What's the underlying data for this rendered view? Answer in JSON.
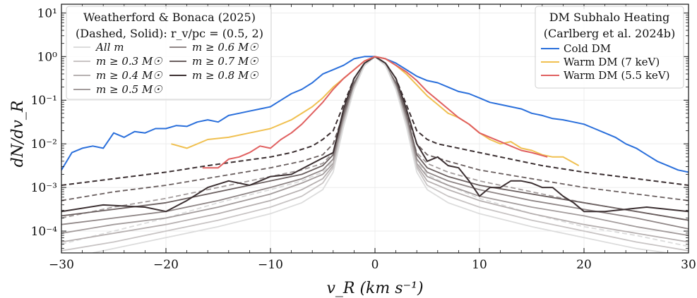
{
  "chart_data": {
    "type": "line",
    "xlabel": "v_R (km s⁻¹)",
    "ylabel": "dN/dv_R",
    "xlim": [
      -30,
      30
    ],
    "ylim_log10": [
      -4.5,
      1.2
    ],
    "grid": true,
    "x_ticks": [
      -30,
      -20,
      -10,
      0,
      10,
      20,
      30
    ],
    "x_tick_labels": [
      "−30",
      "−20",
      "−10",
      "0",
      "10",
      "20",
      "30"
    ],
    "y_ticks_log10": [
      -4,
      -3,
      -2,
      -1,
      0,
      1
    ],
    "y_tick_labels": [
      "10⁻⁴",
      "10⁻³",
      "10⁻²",
      "10⁻¹",
      "10⁰",
      "10¹"
    ],
    "legend_left": {
      "title_line1": "Weatherford & Bonaca (2025)",
      "title_line2": "(Dashed, Solid): r_v/pc = (0.5, 2)",
      "entries": [
        {
          "label": "All m",
          "color": "#dcdcdc"
        },
        {
          "label": "m ≥ 0.3 M☉",
          "color": "#c8c4c4"
        },
        {
          "label": "m ≥ 0.4 M☉",
          "color": "#b6b0b0"
        },
        {
          "label": "m ≥ 0.5 M☉",
          "color": "#a39c9c"
        },
        {
          "label": "m ≥ 0.6 M☉",
          "color": "#8f8686"
        },
        {
          "label": "m ≥ 0.7 M☉",
          "color": "#6a5f5f"
        },
        {
          "label": "m ≥ 0.8 M☉",
          "color": "#3c3032"
        }
      ]
    },
    "legend_right": {
      "title_line1": "DM Subhalo Heating",
      "title_line2": "(Carlberg et al. 2024b)",
      "entries": [
        {
          "label": "Cold DM",
          "color": "#2a6fdb"
        },
        {
          "label": "Warm DM (7 keV)",
          "color": "#f0c050"
        },
        {
          "label": "Warm DM (5.5 keV)",
          "color": "#e06060"
        }
      ]
    },
    "series": [
      {
        "name": "Cold DM",
        "color": "#2a6fdb",
        "style": "solid",
        "x": [
          -30,
          -29,
          -28,
          -27,
          -26,
          -25,
          -24,
          -23,
          -22,
          -21,
          -20,
          -19,
          -18,
          -17,
          -16,
          -15,
          -14,
          -13,
          -12,
          -11,
          -10,
          -9,
          -8,
          -7,
          -6,
          -5,
          -4,
          -3,
          -2,
          -1,
          0,
          1,
          2,
          3,
          4,
          5,
          6,
          7,
          8,
          9,
          10,
          11,
          12,
          13,
          14,
          15,
          16,
          17,
          18,
          19,
          20,
          21,
          22,
          23,
          24,
          25,
          26,
          27,
          28,
          29,
          30
        ],
        "log10y": [
          -2.6,
          -2.2,
          -2.1,
          -2.05,
          -2.1,
          -1.75,
          -1.85,
          -1.72,
          -1.75,
          -1.65,
          -1.65,
          -1.58,
          -1.6,
          -1.5,
          -1.45,
          -1.5,
          -1.35,
          -1.3,
          -1.25,
          -1.2,
          -1.15,
          -1.0,
          -0.85,
          -0.75,
          -0.6,
          -0.4,
          -0.3,
          -0.2,
          -0.05,
          0,
          0,
          -0.05,
          -0.15,
          -0.3,
          -0.45,
          -0.55,
          -0.6,
          -0.7,
          -0.8,
          -0.85,
          -0.95,
          -1.05,
          -1.1,
          -1.15,
          -1.2,
          -1.3,
          -1.35,
          -1.42,
          -1.45,
          -1.5,
          -1.55,
          -1.65,
          -1.75,
          -1.85,
          -2.0,
          -2.1,
          -2.25,
          -2.4,
          -2.5,
          -2.6,
          -2.65
        ]
      },
      {
        "name": "Warm DM (7 keV)",
        "color": "#f0c050",
        "style": "solid",
        "x": [
          -19.5,
          -18,
          -16,
          -14,
          -12,
          -10,
          -8,
          -6,
          -5,
          -4,
          -3,
          -2,
          -1,
          0,
          1,
          2,
          3,
          4,
          5,
          6,
          7,
          8,
          9,
          10,
          11,
          12,
          13,
          14,
          15,
          16,
          17,
          18,
          19.5
        ],
        "log10y": [
          -2.0,
          -2.1,
          -1.9,
          -1.85,
          -1.75,
          -1.65,
          -1.45,
          -1.15,
          -0.95,
          -0.7,
          -0.5,
          -0.3,
          -0.1,
          0,
          -0.05,
          -0.2,
          -0.4,
          -0.65,
          -0.9,
          -1.1,
          -1.3,
          -1.4,
          -1.55,
          -1.75,
          -1.9,
          -2.0,
          -1.95,
          -2.1,
          -2.15,
          -2.25,
          -2.3,
          -2.3,
          -2.5
        ]
      },
      {
        "name": "Warm DM (5.5 keV)",
        "color": "#e06060",
        "style": "solid",
        "x": [
          -16.5,
          -15,
          -14,
          -13,
          -12,
          -11,
          -10,
          -9,
          -8,
          -7,
          -6,
          -5,
          -4,
          -3,
          -2,
          -1,
          0,
          1,
          2,
          3,
          4,
          5,
          6,
          7,
          8,
          9,
          10,
          11,
          12,
          13,
          14,
          15,
          16.5
        ],
        "log10y": [
          -2.55,
          -2.55,
          -2.35,
          -2.3,
          -2.2,
          -2.05,
          -2.1,
          -1.9,
          -1.75,
          -1.55,
          -1.3,
          -1.05,
          -0.75,
          -0.5,
          -0.3,
          -0.1,
          0,
          -0.05,
          -0.2,
          -0.35,
          -0.55,
          -0.8,
          -1.0,
          -1.2,
          -1.4,
          -1.55,
          -1.75,
          -1.85,
          -1.95,
          -2.05,
          -2.15,
          -2.2,
          -2.3
        ]
      },
      {
        "name": "m ≥ 0.8 M☉ (solid)",
        "color": "#3c3032",
        "style": "solid",
        "x": [
          -30,
          -26,
          -22,
          -20,
          -18,
          -16,
          -14,
          -12,
          -10,
          -8,
          -6,
          -4,
          -3,
          -2,
          -1,
          0,
          1,
          2,
          3,
          4,
          5,
          6,
          7,
          8,
          9,
          10,
          11,
          12,
          13,
          14,
          15,
          16,
          17,
          18,
          19,
          20,
          22,
          24,
          26,
          28,
          30
        ],
        "log10y": [
          -3.55,
          -3.4,
          -3.45,
          -3.55,
          -3.3,
          -3.0,
          -2.85,
          -2.95,
          -2.75,
          -2.7,
          -2.45,
          -2.2,
          -1.2,
          -0.5,
          -0.15,
          0,
          -0.15,
          -0.5,
          -1.2,
          -2.0,
          -2.4,
          -2.3,
          -2.5,
          -2.55,
          -2.85,
          -3.2,
          -3.0,
          -3.0,
          -2.85,
          -2.85,
          -2.9,
          -3.0,
          -3.0,
          -3.2,
          -3.35,
          -3.55,
          -3.55,
          -3.5,
          -3.45,
          -3.5,
          -3.55
        ]
      },
      {
        "name": "m ≥ 0.8 M☉ (dashed)",
        "color": "#3c3032",
        "style": "dashed",
        "x": [
          -30,
          -25,
          -20,
          -16,
          -13,
          -10,
          -8,
          -6,
          -5,
          -4,
          -3,
          -2,
          -1,
          0,
          1,
          2,
          3,
          4,
          5,
          6,
          8,
          10,
          13,
          16,
          20,
          25,
          30
        ],
        "log10y": [
          -2.95,
          -2.8,
          -2.65,
          -2.5,
          -2.4,
          -2.3,
          -2.2,
          -2.05,
          -1.9,
          -1.7,
          -1.1,
          -0.5,
          -0.15,
          0,
          -0.15,
          -0.5,
          -1.1,
          -1.7,
          -1.9,
          -2.0,
          -2.1,
          -2.2,
          -2.35,
          -2.5,
          -2.65,
          -2.8,
          -2.95
        ]
      },
      {
        "name": "m ≥ 0.6 M☉ (dashed)",
        "color": "#6a5f5f",
        "style": "dashed",
        "x": [
          -30,
          -25,
          -20,
          -15,
          -10,
          -7,
          -5,
          -4,
          -3,
          -2,
          -1,
          0,
          1,
          2,
          3,
          4,
          5,
          7,
          10,
          15,
          20,
          25,
          30
        ],
        "log10y": [
          -3.3,
          -3.1,
          -2.95,
          -2.75,
          -2.55,
          -2.4,
          -2.25,
          -2.0,
          -1.3,
          -0.6,
          -0.2,
          0,
          -0.2,
          -0.6,
          -1.3,
          -2.0,
          -2.25,
          -2.4,
          -2.6,
          -2.8,
          -3.0,
          -3.15,
          -3.3
        ]
      },
      {
        "name": "m ≥ 0.4 M☉ (dashed)",
        "color": "#a39c9c",
        "style": "dashed",
        "x": [
          -30,
          -25,
          -20,
          -15,
          -10,
          -7,
          -5,
          -4,
          -3,
          -2,
          -1,
          0,
          1,
          2,
          3,
          4,
          5,
          7,
          10,
          15,
          20,
          25,
          30
        ],
        "log10y": [
          -3.7,
          -3.45,
          -3.25,
          -3.0,
          -2.75,
          -2.6,
          -2.45,
          -2.2,
          -1.4,
          -0.65,
          -0.2,
          0,
          -0.2,
          -0.65,
          -1.4,
          -2.2,
          -2.45,
          -2.65,
          -2.85,
          -3.1,
          -3.35,
          -3.55,
          -3.75
        ]
      },
      {
        "name": "All m (dashed)",
        "color": "#dcdcdc",
        "style": "dashed",
        "x": [
          -30,
          -25,
          -20,
          -15,
          -10,
          -7,
          -5,
          -4,
          -3,
          -2,
          -1,
          0,
          1,
          2,
          3,
          4,
          5,
          7,
          10,
          15,
          20,
          25,
          30
        ],
        "log10y": [
          -4.3,
          -4.0,
          -3.7,
          -3.35,
          -3.05,
          -2.85,
          -2.65,
          -2.4,
          -1.5,
          -0.7,
          -0.2,
          0,
          -0.2,
          -0.7,
          -1.5,
          -2.4,
          -2.7,
          -2.95,
          -3.25,
          -3.6,
          -3.9,
          -4.1,
          -4.35
        ]
      },
      {
        "name": "m ≥ 0.7 M☉ (solid)",
        "color": "#6a5f5f",
        "style": "solid",
        "x": [
          -30,
          -25,
          -20,
          -15,
          -10,
          -7,
          -5,
          -4,
          -3,
          -2,
          -1,
          0,
          1,
          2,
          3,
          4,
          5,
          7,
          10,
          15,
          20,
          25,
          30
        ],
        "log10y": [
          -3.65,
          -3.5,
          -3.35,
          -3.1,
          -2.85,
          -2.7,
          -2.5,
          -2.25,
          -1.3,
          -0.6,
          -0.2,
          0,
          -0.2,
          -0.6,
          -1.3,
          -2.25,
          -2.55,
          -2.75,
          -2.95,
          -3.15,
          -3.35,
          -3.55,
          -3.75
        ]
      },
      {
        "name": "m ≥ 0.6 M☉ (solid)",
        "color": "#8f8686",
        "style": "solid",
        "x": [
          -30,
          -25,
          -20,
          -15,
          -10,
          -7,
          -5,
          -4,
          -3,
          -2,
          -1,
          0,
          1,
          2,
          3,
          4,
          5,
          7,
          10,
          15,
          20,
          25,
          30
        ],
        "log10y": [
          -3.85,
          -3.7,
          -3.55,
          -3.3,
          -3.0,
          -2.8,
          -2.6,
          -2.35,
          -1.4,
          -0.65,
          -0.2,
          0,
          -0.2,
          -0.65,
          -1.4,
          -2.35,
          -2.65,
          -2.85,
          -3.05,
          -3.3,
          -3.5,
          -3.7,
          -3.95
        ]
      },
      {
        "name": "m ≥ 0.5 M☉ (solid)",
        "color": "#a39c9c",
        "style": "solid",
        "x": [
          -30,
          -25,
          -20,
          -15,
          -10,
          -7,
          -5,
          -4,
          -3,
          -2,
          -1,
          0,
          1,
          2,
          3,
          4,
          5,
          7,
          10,
          15,
          20,
          25,
          30
        ],
        "log10y": [
          -4.05,
          -3.85,
          -3.7,
          -3.45,
          -3.15,
          -2.9,
          -2.7,
          -2.45,
          -1.45,
          -0.7,
          -0.2,
          0,
          -0.2,
          -0.7,
          -1.45,
          -2.45,
          -2.75,
          -2.95,
          -3.2,
          -3.45,
          -3.65,
          -3.9,
          -4.1
        ]
      },
      {
        "name": "m ≥ 0.4 M☉ (solid)",
        "color": "#b6b0b0",
        "style": "solid",
        "x": [
          -30,
          -25,
          -20,
          -15,
          -10,
          -7,
          -5,
          -4,
          -3,
          -2,
          -1,
          0,
          1,
          2,
          3,
          4,
          5,
          7,
          10,
          15,
          20,
          25,
          30
        ],
        "log10y": [
          -4.25,
          -4.05,
          -3.85,
          -3.6,
          -3.3,
          -3.05,
          -2.8,
          -2.5,
          -1.5,
          -0.7,
          -0.2,
          0,
          -0.2,
          -0.7,
          -1.5,
          -2.5,
          -2.85,
          -3.05,
          -3.3,
          -3.6,
          -3.85,
          -4.05,
          -4.25
        ]
      },
      {
        "name": "m ≥ 0.3 M☉ (solid)",
        "color": "#c8c4c4",
        "style": "solid",
        "x": [
          -30,
          -25,
          -20,
          -15,
          -10,
          -7,
          -5,
          -4,
          -3,
          -2,
          -1,
          0,
          1,
          2,
          3,
          4,
          5,
          7,
          10,
          15,
          20,
          25,
          30
        ],
        "log10y": [
          -4.45,
          -4.25,
          -4.0,
          -3.75,
          -3.45,
          -3.2,
          -2.9,
          -2.55,
          -1.55,
          -0.75,
          -0.2,
          0,
          -0.2,
          -0.75,
          -1.55,
          -2.55,
          -2.95,
          -3.2,
          -3.45,
          -3.75,
          -4.0,
          -4.25,
          -4.45
        ]
      },
      {
        "name": "All m (solid)",
        "color": "#dcdcdc",
        "style": "solid",
        "x": [
          -27,
          -25,
          -20,
          -15,
          -10,
          -7,
          -5,
          -4,
          -3,
          -2,
          -1,
          0,
          1,
          2,
          3,
          4,
          5,
          7,
          10,
          15,
          20,
          25,
          28
        ],
        "log10y": [
          -4.5,
          -4.4,
          -4.15,
          -3.9,
          -3.6,
          -3.35,
          -3.05,
          -2.65,
          -1.6,
          -0.75,
          -0.2,
          0,
          -0.2,
          -0.75,
          -1.6,
          -2.65,
          -3.05,
          -3.35,
          -3.6,
          -3.9,
          -4.15,
          -4.4,
          -4.5
        ]
      }
    ]
  }
}
